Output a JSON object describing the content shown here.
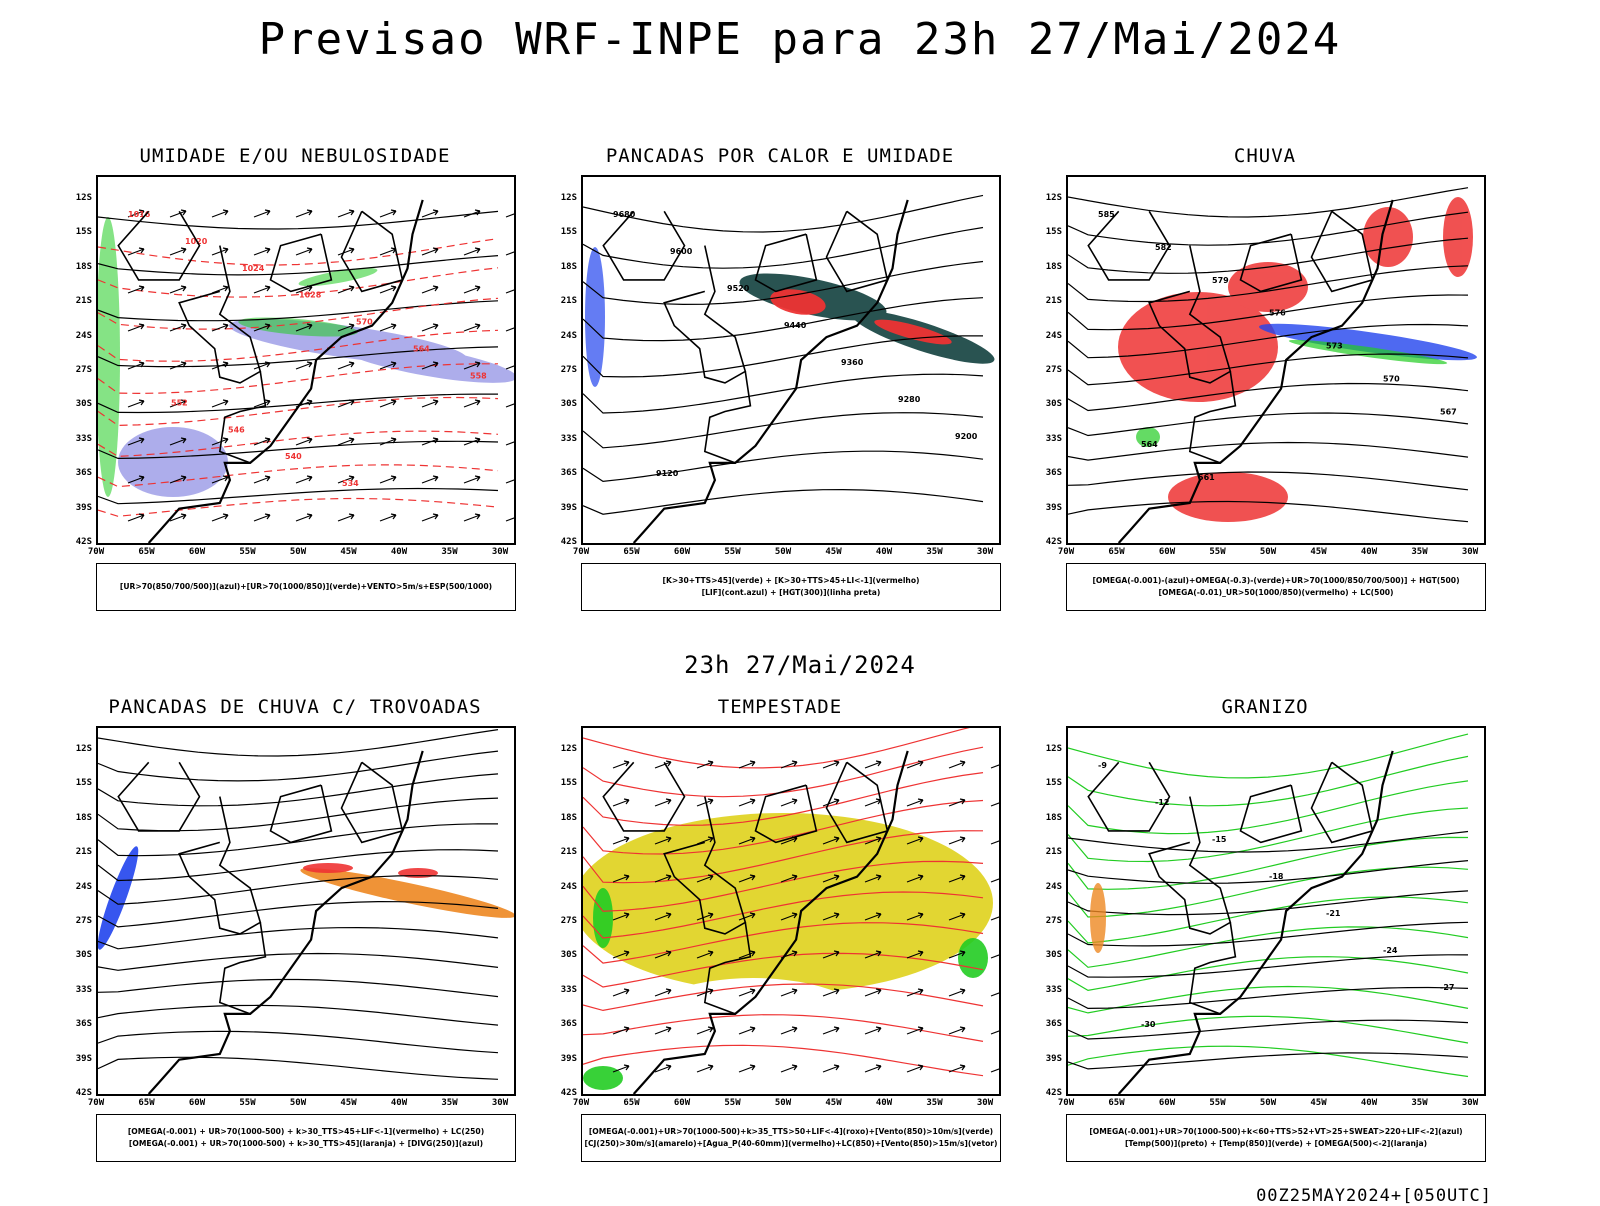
{
  "header": {
    "title": "Previsao WRF-INPE  para 23h 27/Mai/2024",
    "subtitle": "23h 27/Mai/2024",
    "run_stamp": "00Z25MAY2024+[050UTC]"
  },
  "axes": {
    "lat_labels": [
      "12S",
      "15S",
      "18S",
      "21S",
      "24S",
      "27S",
      "30S",
      "33S",
      "36S",
      "39S",
      "42S"
    ],
    "lon_labels": [
      "70W",
      "65W",
      "60W",
      "55W",
      "50W",
      "45W",
      "40W",
      "35W",
      "30W"
    ]
  },
  "colors": {
    "blue": "#2244ee",
    "lavender": "#9f9fe8",
    "green": "#22cc22",
    "red": "#ee3333",
    "dark_teal": "#1e4a48",
    "orange": "#ee8822",
    "yellow": "#e2d632"
  },
  "panels": [
    {
      "id": "umidade",
      "title": "UMIDADE E/OU NEBULOSIDADE",
      "legend": [
        "[UR>70(850/700/500)](azul)+[UR>70(1000/850)](verde)+VENTO>5m/s+ESP(500/1000)"
      ],
      "contour_labels": [
        "1016",
        "1020",
        "1024",
        "1028",
        "570",
        "564",
        "558",
        "552",
        "546",
        "540",
        "534"
      ]
    },
    {
      "id": "pancadas_calor",
      "title": "PANCADAS POR CALOR E UMIDADE",
      "legend": [
        "[K>30+TTS>45](verde) + [K>30+TTS>45+LI<-1](vermelho)",
        "[LIF](cont.azul) + [HGT(300)](linha preta)"
      ],
      "contour_labels": [
        "9680",
        "9600",
        "9520",
        "9440",
        "9360",
        "9280",
        "9200",
        "9120"
      ]
    },
    {
      "id": "chuva",
      "title": "CHUVA",
      "legend": [
        "[OMEGA(-0.001)-(azul)+OMEGA(-0.3)-(verde)+UR>70(1000/850/700/500)] + HGT(500)",
        "[OMEGA(-0.01)_UR>50(1000/850)(vermelho) + LC(500)"
      ],
      "contour_labels": [
        "585",
        "582",
        "579",
        "576",
        "573",
        "570",
        "567",
        "564",
        "561"
      ]
    },
    {
      "id": "pancadas_trovoadas",
      "title": "PANCADAS DE CHUVA C/ TROVOADAS",
      "legend": [
        "[OMEGA(-0.001) + UR>70(1000-500) + k>30_TTS>45+LIF<-1](vermelho) + LC(250)",
        "[OMEGA(-0.001) + UR>70(1000-500) + k>30_TTS>45](laranja) + [DIVG(250)](azul)"
      ],
      "contour_labels": []
    },
    {
      "id": "tempestade",
      "title": "TEMPESTADE",
      "legend": [
        "[OMEGA(-0.001)+UR>70(1000-500)+k>35_TTS>50+LIF<-4](roxo)+[Vento(850)>10m/s](verde)",
        "[CJ(250)>30m/s](amarelo)+[Agua_P(40-60mm)](vermelho)+LC(850)+[Vento(850)>15m/s](vetor)"
      ],
      "contour_labels": []
    },
    {
      "id": "granizo",
      "title": "GRANIZO",
      "legend": [
        "[OMEGA(-0.001)+UR>70(1000-500)+k<60+TTS>52+VT>25+SWEAT>220+LIF<-2](azul)",
        "[Temp(500)](preto) + [Temp(850)](verde) + [OMEGA(500)<-2](laranja)"
      ],
      "contour_labels": [
        "-9",
        "-12",
        "-15",
        "-18",
        "-21",
        "-24",
        "-27",
        "-30"
      ]
    }
  ]
}
